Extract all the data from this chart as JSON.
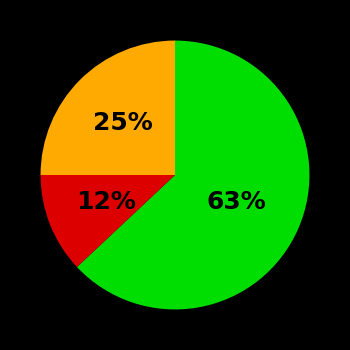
{
  "slices": [
    63,
    12,
    25
  ],
  "colors": [
    "#00dd00",
    "#dd0000",
    "#ffaa00"
  ],
  "labels": [
    "63%",
    "12%",
    "25%"
  ],
  "label_colors": [
    "#000000",
    "#000000",
    "#000000"
  ],
  "background_color": "#000000",
  "label_fontsize": 18,
  "label_fontweight": "bold",
  "startangle": 90,
  "counterclock": false,
  "label_radii": [
    0.5,
    0.55,
    0.55
  ],
  "figsize": [
    3.5,
    3.5
  ],
  "dpi": 100
}
